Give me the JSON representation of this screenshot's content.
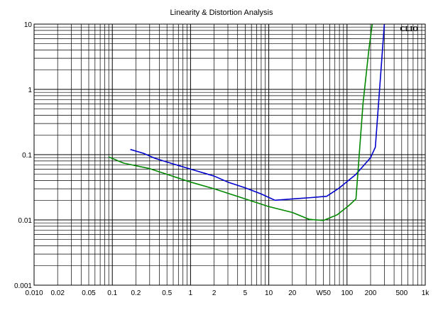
{
  "chart_data": {
    "type": "line",
    "title": "Linearity & Distortion Analysis",
    "brand_label": "CLIO",
    "xscale": "log",
    "yscale": "log",
    "xlim": [
      0.01,
      1000
    ],
    "ylim": [
      0.001,
      10
    ],
    "grid": true,
    "x_ticks": [
      {
        "value": 0.01,
        "label": "0.010"
      },
      {
        "value": 0.02,
        "label": "0.02"
      },
      {
        "value": 0.05,
        "label": "0.05"
      },
      {
        "value": 0.1,
        "label": "0.1"
      },
      {
        "value": 0.2,
        "label": "0.2"
      },
      {
        "value": 0.5,
        "label": "0.5"
      },
      {
        "value": 1,
        "label": "1"
      },
      {
        "value": 2,
        "label": "2"
      },
      {
        "value": 5,
        "label": "5"
      },
      {
        "value": 10,
        "label": "10"
      },
      {
        "value": 20,
        "label": "20"
      },
      {
        "value": 50,
        "label": "W50"
      },
      {
        "value": 100,
        "label": "100"
      },
      {
        "value": 200,
        "label": "200"
      },
      {
        "value": 500,
        "label": "500"
      },
      {
        "value": 1000,
        "label": "1k"
      }
    ],
    "y_ticks": [
      {
        "value": 10,
        "label": "10"
      },
      {
        "value": 1,
        "label": "1"
      },
      {
        "value": 0.1,
        "label": "0.1"
      },
      {
        "value": 0.01,
        "label": "0.01"
      },
      {
        "value": 0.001,
        "label": "0.001"
      }
    ],
    "series": [
      {
        "color": "#0000cc",
        "x": [
          0.17,
          0.25,
          0.35,
          0.6,
          1.0,
          2.0,
          3.0,
          5.0,
          8.0,
          12.0,
          20.0,
          35.0,
          55.0,
          80.0,
          130.0,
          200.0,
          230.0,
          300.0
        ],
        "y": [
          0.12,
          0.105,
          0.088,
          0.072,
          0.06,
          0.047,
          0.038,
          0.031,
          0.025,
          0.02,
          0.021,
          0.022,
          0.023,
          0.031,
          0.05,
          0.09,
          0.13,
          10.0
        ]
      },
      {
        "color": "#008800",
        "x": [
          0.09,
          0.14,
          0.3,
          0.5,
          1.0,
          2.0,
          5.0,
          10.0,
          20.0,
          33.0,
          50.0,
          75.0,
          105.0,
          130.0,
          160.0,
          190.0,
          210.0
        ],
        "y": [
          0.092,
          0.074,
          0.061,
          0.05,
          0.038,
          0.03,
          0.021,
          0.016,
          0.013,
          0.0102,
          0.0098,
          0.012,
          0.0165,
          0.021,
          0.6,
          4.0,
          10.0
        ]
      }
    ]
  }
}
